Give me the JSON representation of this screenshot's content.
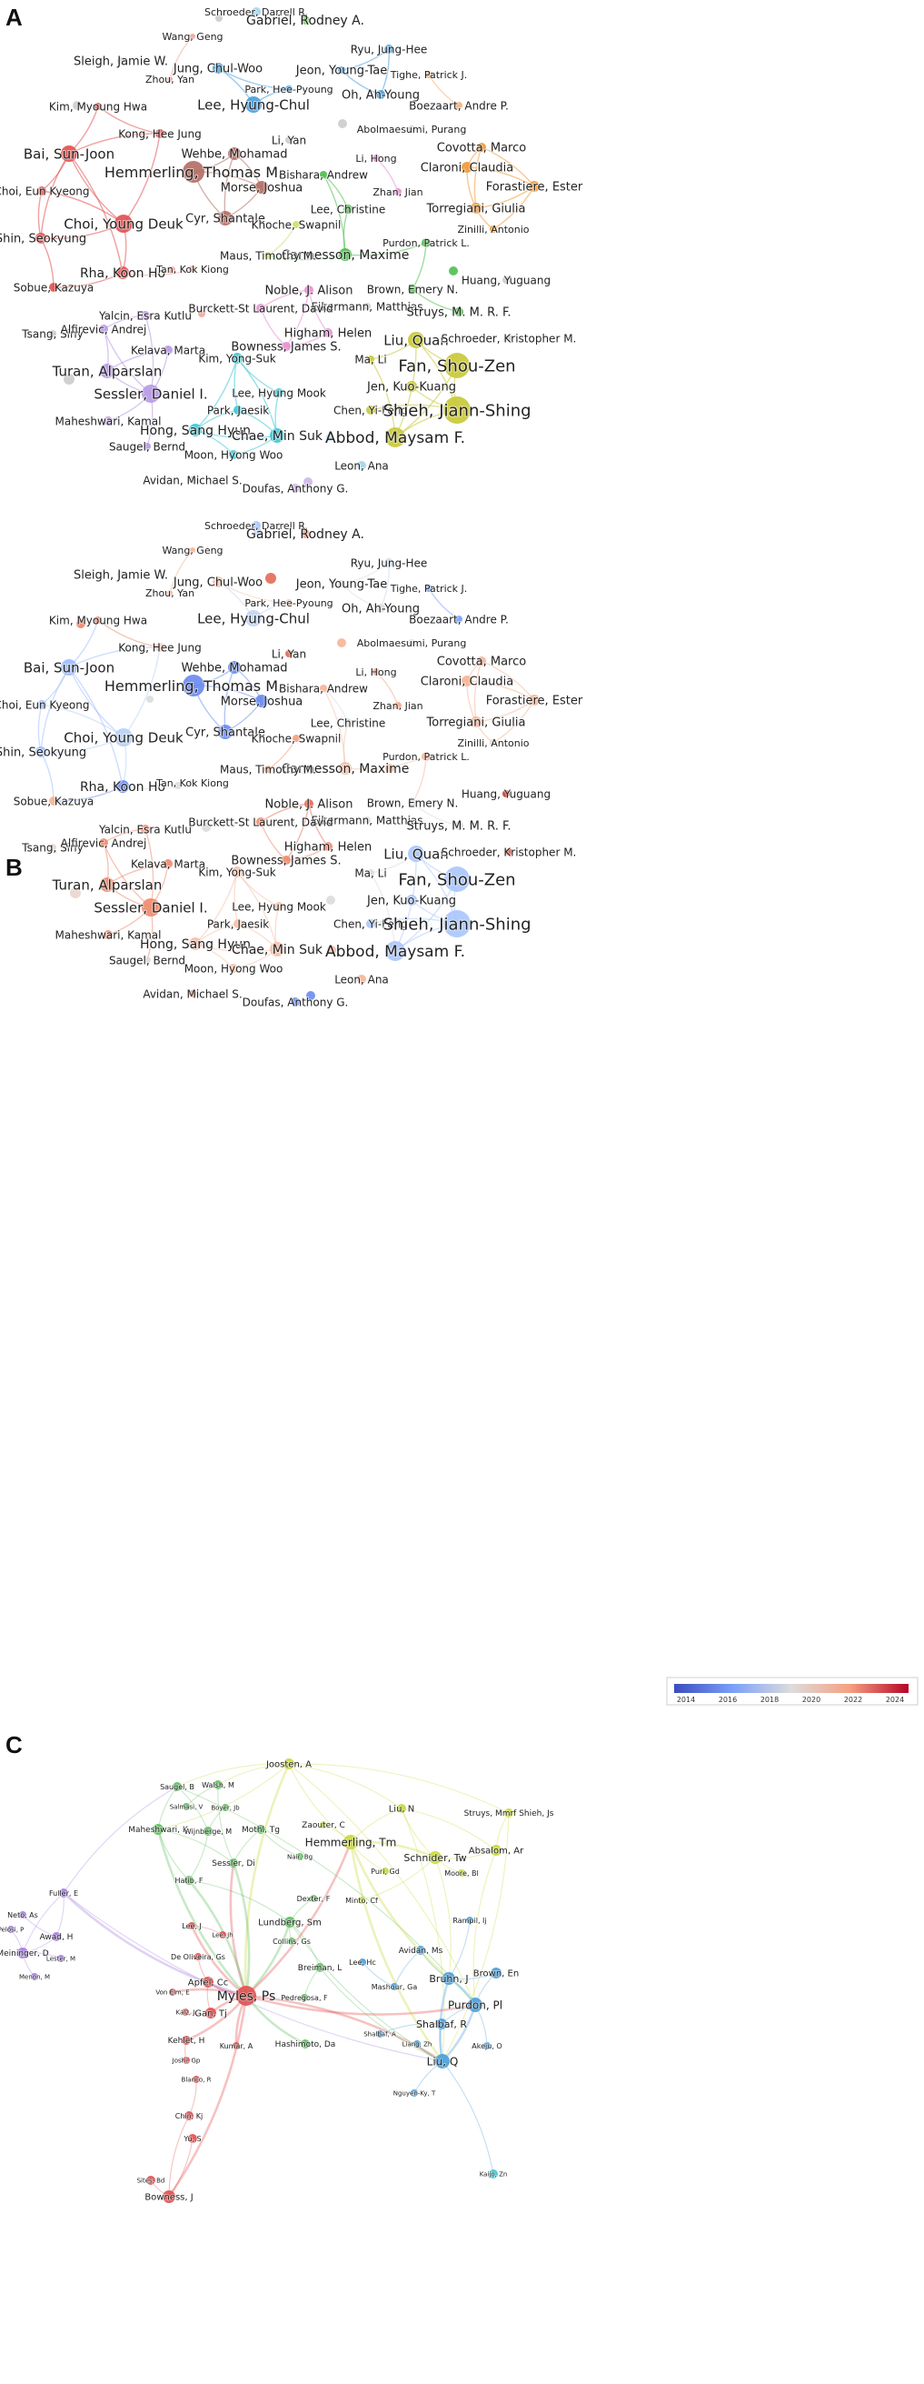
{
  "panels": [
    {
      "letter": "A",
      "nodes": [
        {
          "label": "Schroeder, Darrell R.",
          "color": "#a5d5ee"
        },
        {
          "label": "Gabriel, Rodney A.",
          "color": "#7fcf6a"
        },
        {
          "label": "Wang, Geng",
          "color": "#f0a89c"
        },
        {
          "label": "Sleigh, Jamie W.",
          "color": "#cccccc"
        },
        {
          "label": "Zhou, Yan",
          "color": "#f0a89c"
        },
        {
          "label": "Jung, Chul-Woo",
          "color": "#4a9fdc"
        },
        {
          "label": "Ryu, Jung-Hee",
          "color": "#4a9fdc"
        },
        {
          "label": "Jeon, Young-Tae",
          "color": "#4a9fdc"
        },
        {
          "label": "Tighe, Patrick J.",
          "color": "#f7b27a"
        },
        {
          "label": "Park, Hee-Pyoung",
          "color": "#4a9fdc"
        },
        {
          "label": "Oh, Ah-Young",
          "color": "#4a9fdc"
        },
        {
          "label": "Lee, Hyung-Chul",
          "color": "#4a9fdc"
        },
        {
          "label": "Boezaart, Andre P.",
          "color": "#f7b27a"
        },
        {
          "label": "Kim, Myoung Hwa",
          "color": "#e35151"
        },
        {
          "label": "Abolmaesumi, Purang",
          "color": "#cccccc"
        },
        {
          "label": "Kong, Hee Jung",
          "color": "#e35151"
        },
        {
          "label": "Li, Yan",
          "color": "#cccccc"
        },
        {
          "label": "Bai, Sun-Joon",
          "color": "#e35151"
        },
        {
          "label": "Wehbe, Mohamad",
          "color": "#b46f66"
        },
        {
          "label": "Covotta, Marco",
          "color": "#f39a3a"
        },
        {
          "label": "Li, Hong",
          "color": "#e88fd3"
        },
        {
          "label": "Hemmerling, Thomas M.",
          "color": "#b46f66"
        },
        {
          "label": "Claroni, Claudia",
          "color": "#f39a3a"
        },
        {
          "label": "Bishara, Andrew",
          "color": "#4fbf4f"
        },
        {
          "label": "Forastiere, Ester",
          "color": "#f39a3a"
        },
        {
          "label": "Morse, Joshua",
          "color": "#b46f66"
        },
        {
          "label": "Choi, Eun Kyeong",
          "color": "#e35151"
        },
        {
          "label": "Zhan, Jian",
          "color": "#e88fd3"
        },
        {
          "label": "Lee, Christine",
          "color": "#4fbf4f"
        },
        {
          "label": "Torregiani, Giulia",
          "color": "#f39a3a"
        },
        {
          "label": "Cyr, Shantale",
          "color": "#b46f66"
        },
        {
          "label": "Choi, Young Deuk",
          "color": "#e35151"
        },
        {
          "label": "Zinilli, Antonio",
          "color": "#f39a3a"
        },
        {
          "label": "Khoche, Swapnil",
          "color": "#d2df6a"
        },
        {
          "label": "Shin, Seokyung",
          "color": "#e35151"
        },
        {
          "label": "Cannesson, Maxime",
          "color": "#4fbf4f"
        },
        {
          "label": "Maus, Timothy M.",
          "color": "#d2df6a"
        },
        {
          "label": "Purdon, Patrick L.",
          "color": "#4fbf4f"
        },
        {
          "label": "Rha, Koon Ho",
          "color": "#e35151"
        },
        {
          "label": "Tan, Kok Kiong",
          "color": "#f0a89c"
        },
        {
          "label": "Huang, Yuguang",
          "color": "#cccccc"
        },
        {
          "label": "Sobue, Kazuya",
          "color": "#e35151"
        },
        {
          "label": "Brown, Emery N.",
          "color": "#4fbf4f"
        },
        {
          "label": "Noble, J. Alison",
          "color": "#e88fd3"
        },
        {
          "label": "Eikermann, Matthias",
          "color": "#cccccc"
        },
        {
          "label": "Burckett-St Laurent, David",
          "color": "#e88fd3"
        },
        {
          "label": "Struys, M. M. R. F.",
          "color": "#4fbf4f"
        },
        {
          "label": "Yalcin, Esra Kutlu",
          "color": "#b89ae6"
        },
        {
          "label": "Higham, Helen",
          "color": "#e88fd3"
        },
        {
          "label": "Tsang, Siny",
          "color": "#cccccc"
        },
        {
          "label": "Alfirevic, Andrej",
          "color": "#b89ae6"
        },
        {
          "label": "Liu, Quan",
          "color": "#c9c93a"
        },
        {
          "label": "Schroeder, Kristopher M.",
          "color": "#cccccc"
        },
        {
          "label": "Kelava, Marta",
          "color": "#b89ae6"
        },
        {
          "label": "Bowness, James S.",
          "color": "#e88fd3"
        },
        {
          "label": "Kim, Yong-Suk",
          "color": "#3fc8d8"
        },
        {
          "label": "Ma, Li",
          "color": "#c9c93a"
        },
        {
          "label": "Fan, Shou-Zen",
          "color": "#c9c93a"
        },
        {
          "label": "Turan, Alparslan",
          "color": "#b89ae6"
        },
        {
          "label": "Jen, Kuo-Kuang",
          "color": "#c9c93a"
        },
        {
          "label": "Lee, Hyung Mook",
          "color": "#3fc8d8"
        },
        {
          "label": "Sessler, Daniel I.",
          "color": "#b89ae6"
        },
        {
          "label": "Park, Jaesik",
          "color": "#3fc8d8"
        },
        {
          "label": "Chen, Yi-Feng",
          "color": "#c9c93a"
        },
        {
          "label": "Shieh, Jiann-Shing",
          "color": "#c9c93a"
        },
        {
          "label": "Hong, Sang Hyun",
          "color": "#3fc8d8"
        },
        {
          "label": "Maheshwari, Kamal",
          "color": "#b89ae6"
        },
        {
          "label": "Chae, Min Suk",
          "color": "#3fc8d8"
        },
        {
          "label": "Abbod, Maysam F.",
          "color": "#c9c93a"
        },
        {
          "label": "Saugel, Bernd",
          "color": "#b89ae6"
        },
        {
          "label": "Moon, Hyong Woo",
          "color": "#3fc8d8"
        },
        {
          "label": "Leon, Ana",
          "color": "#a5d5ee"
        },
        {
          "label": "Avidan, Michael S.",
          "color": "#cccccc"
        },
        {
          "label": "Doufas, Anthony G.",
          "color": "#cdb6e8"
        }
      ]
    },
    {
      "letter": "B",
      "legend": {
        "ticks": [
          "2014",
          "2016",
          "2018",
          "2020",
          "2022",
          "2024"
        ],
        "low_color": "#3b4cc0",
        "high_color": "#b40426"
      },
      "nodes": [
        {
          "label": "Schroeder, Darrell R.",
          "color": "#aac7fd"
        },
        {
          "label": "Gabriel, Rodney A.",
          "color": "#f5a081"
        },
        {
          "label": "Wang, Geng",
          "color": "#f7b497"
        },
        {
          "label": "Sleigh, Jamie W.",
          "color": "#dddcdc"
        },
        {
          "label": "Zhou, Yan",
          "color": "#f7b497"
        },
        {
          "label": "Jung, Chul-Woo",
          "color": "#f4c5ad"
        },
        {
          "label": "Ryu, Jung-Hee",
          "color": "#c5d6f2"
        },
        {
          "label": "Jeon, Young-Tae",
          "color": "#dddcdc"
        },
        {
          "label": "Tighe, Patrick J.",
          "color": "#7b9ff9"
        },
        {
          "label": "Park, Hee-Pyoung",
          "color": "#f2cbb7"
        },
        {
          "label": "Oh, Ah-Young",
          "color": "#dddcdc"
        },
        {
          "label": "Lee, Hyung-Chul",
          "color": "#c3d5f4"
        },
        {
          "label": "Boezaart, Andre P.",
          "color": "#7b9ff9"
        },
        {
          "label": "Kim, Myoung Hwa",
          "color": "#ee8468"
        },
        {
          "label": "Abolmaesumi, Purang",
          "color": "#dddcdc"
        },
        {
          "label": "Kong, Hee Jung",
          "color": "#f1ccb8"
        },
        {
          "label": "Li, Yan",
          "color": "#e36c55"
        },
        {
          "label": "Bai, Sun-Joon",
          "color": "#9ebeff"
        },
        {
          "label": "Wehbe, Mohamad",
          "color": "#6a8bef"
        },
        {
          "label": "Covotta, Marco",
          "color": "#f7b497"
        },
        {
          "label": "Li, Hong",
          "color": "#f7a688"
        },
        {
          "label": "Hemmerling, Thomas M.",
          "color": "#6a8bef"
        },
        {
          "label": "Claroni, Claudia",
          "color": "#f7b497"
        },
        {
          "label": "Bishara, Andrew",
          "color": "#f7b497"
        },
        {
          "label": "Forastiere, Ester",
          "color": "#f7b497"
        },
        {
          "label": "Morse, Joshua",
          "color": "#6a8bef"
        },
        {
          "label": "Choi, Eun Kyeong",
          "color": "#9ebeff"
        },
        {
          "label": "Zhan, Jian",
          "color": "#f7a688"
        },
        {
          "label": "Lee, Christine",
          "color": "#dddcdc"
        },
        {
          "label": "Torregiani, Giulia",
          "color": "#f7b497"
        },
        {
          "label": "Cyr, Shantale",
          "color": "#6a8bef"
        },
        {
          "label": "Choi, Young Deuk",
          "color": "#b9d0f9"
        },
        {
          "label": "Zinilli, Antonio",
          "color": "#dddcdc"
        },
        {
          "label": "Khoche, Swapnil",
          "color": "#f5a081"
        },
        {
          "label": "Shin, Seokyung",
          "color": "#9ebeff"
        },
        {
          "label": "Cannesson, Maxime",
          "color": "#f5c0a7"
        },
        {
          "label": "Maus, Timothy M.",
          "color": "#f5a081"
        },
        {
          "label": "Purdon, Patrick L.",
          "color": "#f7b497"
        },
        {
          "label": "Rha, Koon Ho",
          "color": "#6a8bef"
        },
        {
          "label": "Tan, Kok Kiong",
          "color": "#dddcdc"
        },
        {
          "label": "Huang, Yuguang",
          "color": "#cc403a"
        },
        {
          "label": "Sobue, Kazuya",
          "color": "#f7b497"
        },
        {
          "label": "Brown, Emery N.",
          "color": "#dddcdc"
        },
        {
          "label": "Noble, J. Alison",
          "color": "#e36c55"
        },
        {
          "label": "Eikermann, Matthias",
          "color": "#dddcdc"
        },
        {
          "label": "Burckett-St Laurent, David",
          "color": "#f08b6e"
        },
        {
          "label": "Struys, M. M. R. F.",
          "color": "#dddcdc"
        },
        {
          "label": "Yalcin, Esra Kutlu",
          "color": "#f08b6e"
        },
        {
          "label": "Higham, Helen",
          "color": "#f08b6e"
        },
        {
          "label": "Tsang, Siny",
          "color": "#e8d6cc"
        },
        {
          "label": "Alfirevic, Andrej",
          "color": "#f08b6e"
        },
        {
          "label": "Liu, Quan",
          "color": "#aac7fd"
        },
        {
          "label": "Schroeder, Kristopher M.",
          "color": "#d95847"
        },
        {
          "label": "Kelava, Marta",
          "color": "#f08b6e"
        },
        {
          "label": "Bowness, James S.",
          "color": "#f08b6e"
        },
        {
          "label": "Kim, Yong-Suk",
          "color": "#f5c0a7"
        },
        {
          "label": "Ma, Li",
          "color": "#dddcdc"
        },
        {
          "label": "Fan, Shou-Zen",
          "color": "#aac7fd"
        },
        {
          "label": "Turan, Alparslan",
          "color": "#f08b6e"
        },
        {
          "label": "Jen, Kuo-Kuang",
          "color": "#aac7fd"
        },
        {
          "label": "Lee, Hyung Mook",
          "color": "#f5c0a7"
        },
        {
          "label": "Sessler, Daniel I.",
          "color": "#f08b6e"
        },
        {
          "label": "Park, Jaesik",
          "color": "#f5c0a7"
        },
        {
          "label": "Chen, Yi-Feng",
          "color": "#aac7fd"
        },
        {
          "label": "Shieh, Jiann-Shing",
          "color": "#aac7fd"
        },
        {
          "label": "Hong, Sang Hyun",
          "color": "#f5c0a7"
        },
        {
          "label": "Maheshwari, Kamal",
          "color": "#f08b6e"
        },
        {
          "label": "Chae, Min Suk",
          "color": "#f5c0a7"
        },
        {
          "label": "Abbod, Maysam F.",
          "color": "#aac7fd"
        },
        {
          "label": "Saugel, Bernd",
          "color": "#dddcdc"
        },
        {
          "label": "Moon, Hyong Woo",
          "color": "#f5c0a7"
        },
        {
          "label": "Leon, Ana",
          "color": "#f7b497"
        },
        {
          "label": "Avidan, Michael S.",
          "color": "#f08b6e"
        },
        {
          "label": "Doufas, Anthony G.",
          "color": "#6a8bef"
        }
      ]
    },
    {
      "letter": "C",
      "nodes": [
        {
          "label": "Joosten, A",
          "color": "#c9d93a"
        },
        {
          "label": "Saugel, B",
          "color": "#5fc05f"
        },
        {
          "label": "Walsh, M",
          "color": "#5fc05f"
        },
        {
          "label": "Liu, N",
          "color": "#c9d93a"
        },
        {
          "label": "Struys, Mmrf Shieh, Js",
          "color": "#c9d93a"
        },
        {
          "label": "Salmasi, V",
          "color": "#5fc05f"
        },
        {
          "label": "Boyer, Jb",
          "color": "#5fc05f"
        },
        {
          "label": "Zaouter, C",
          "color": "#c9d93a"
        },
        {
          "label": "Maheshwari, K",
          "color": "#5fc05f"
        },
        {
          "label": "Wijnberge, M",
          "color": "#5fc05f"
        },
        {
          "label": "Mothl, Tg",
          "color": "#5fc05f"
        },
        {
          "label": "Hemmerling, Tm",
          "color": "#c9d93a"
        },
        {
          "label": "Absalom, Ar",
          "color": "#c9d93a"
        },
        {
          "label": "Schnider, Tw",
          "color": "#c9d93a"
        },
        {
          "label": "Nair, Bg",
          "color": "#5fc05f"
        },
        {
          "label": "Sessler, Di",
          "color": "#5fc05f"
        },
        {
          "label": "Puri, Gd",
          "color": "#c9d93a"
        },
        {
          "label": "Moore, Bl",
          "color": "#c9d93a"
        },
        {
          "label": "Fuller, E",
          "color": "#a57ee0"
        },
        {
          "label": "Hatib, F",
          "color": "#5fc05f"
        },
        {
          "label": "Dexter, F",
          "color": "#5fc05f"
        },
        {
          "label": "Minto, Cf",
          "color": "#c9d93a"
        },
        {
          "label": "Lundberg, Sm",
          "color": "#5fc05f"
        },
        {
          "label": "Neto, As",
          "color": "#a57ee0"
        },
        {
          "label": "Lee, J",
          "color": "#e35151"
        },
        {
          "label": "Rampil, Ij",
          "color": "#4a9fdc"
        },
        {
          "label": "Pelosi, P",
          "color": "#a57ee0"
        },
        {
          "label": "Lee, Jh",
          "color": "#e35151"
        },
        {
          "label": "Awad, H",
          "color": "#a57ee0"
        },
        {
          "label": "Collins, Gs",
          "color": "#5fc05f"
        },
        {
          "label": "Avidan, Ms",
          "color": "#4a9fdc"
        },
        {
          "label": "Meininger, D",
          "color": "#a57ee0"
        },
        {
          "label": "De Oliveira, Gs",
          "color": "#e35151"
        },
        {
          "label": "Lee, Hc",
          "color": "#4a9fdc"
        },
        {
          "label": "Lester, M",
          "color": "#a57ee0"
        },
        {
          "label": "Breiman, L",
          "color": "#5fc05f"
        },
        {
          "label": "Brown, En",
          "color": "#4a9fdc"
        },
        {
          "label": "Menon, M",
          "color": "#a57ee0"
        },
        {
          "label": "Bruhn, J",
          "color": "#4a9fdc"
        },
        {
          "label": "Apfel, Cc",
          "color": "#e35151"
        },
        {
          "label": "Mashour, Ga",
          "color": "#4a9fdc"
        },
        {
          "label": "Von Elm, E",
          "color": "#e35151"
        },
        {
          "label": "Myles, Ps",
          "color": "#e35151"
        },
        {
          "label": "Pedregosa, F",
          "color": "#5fc05f"
        },
        {
          "label": "Purdon, Pl",
          "color": "#4a9fdc"
        },
        {
          "label": "Kalz, J",
          "color": "#e35151"
        },
        {
          "label": "Gan, Tj",
          "color": "#e35151"
        },
        {
          "label": "Shalbaf, R",
          "color": "#4a9fdc"
        },
        {
          "label": "Shalbaf, A",
          "color": "#4a9fdc"
        },
        {
          "label": "Kehlet, H",
          "color": "#e35151"
        },
        {
          "label": "Hashimoto, Da",
          "color": "#5fc05f"
        },
        {
          "label": "Liang, Zh",
          "color": "#4a9fdc"
        },
        {
          "label": "Akeju, O",
          "color": "#4a9fdc"
        },
        {
          "label": "Kumar, A",
          "color": "#e35151"
        },
        {
          "label": "Joshi, Gp",
          "color": "#e35151"
        },
        {
          "label": "Liu, Q",
          "color": "#4a9fdc"
        },
        {
          "label": "Blanco, R",
          "color": "#e35151"
        },
        {
          "label": "Nguyen-Ky, T",
          "color": "#4a9fdc"
        },
        {
          "label": "Chin, Kj",
          "color": "#e35151"
        },
        {
          "label": "Yu, S",
          "color": "#e35151"
        },
        {
          "label": "Kaijo, Zn",
          "color": "#3fc8d8"
        },
        {
          "label": "Sites, Bd",
          "color": "#e35151"
        },
        {
          "label": "Bowness, J",
          "color": "#e35151"
        }
      ]
    }
  ]
}
